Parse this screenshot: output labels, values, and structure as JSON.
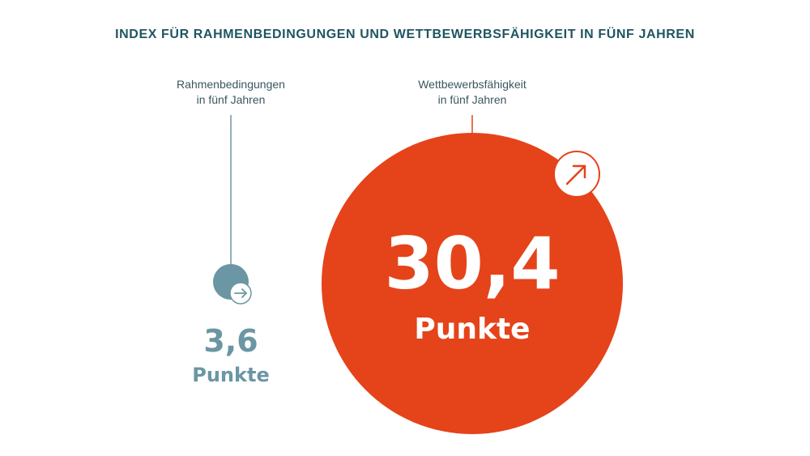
{
  "chart_data": {
    "type": "bubble",
    "title": "INDEX FÜR RAHMENBEDINGUNGEN UND WETTBEWERBSFÄHIGKEIT IN FÜNF JAHREN",
    "unit": "Punkte",
    "series": [
      {
        "label_lines": [
          "Rahmenbedingungen",
          "in fünf Jahren"
        ],
        "value": 3.6,
        "value_display": "3,6",
        "unit": "Punkte",
        "trend": "right-arrow-icon",
        "color": "#6b96a3"
      },
      {
        "label_lines": [
          "Wettbewerbsfähigkeit",
          "in fünf Jahren"
        ],
        "value": 30.4,
        "value_display": "30,4",
        "unit": "Punkte",
        "trend": "up-right-arrow-icon",
        "color": "#e5431a"
      }
    ]
  },
  "colors": {
    "title": "#1f5561",
    "label": "#3a5760",
    "small_bubble": "#6b96a3",
    "large_bubble": "#e5431a",
    "white": "#ffffff"
  }
}
